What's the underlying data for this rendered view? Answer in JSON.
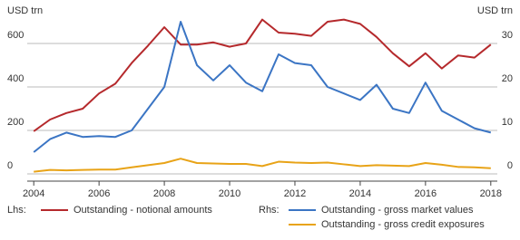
{
  "chart_data": {
    "type": "line",
    "y_label": "USD trn",
    "y2_label": "USD trn",
    "legend_groups": {
      "lhs": "Lhs:",
      "rhs": "Rhs:"
    },
    "x": [
      2004,
      2004.5,
      2005,
      2005.5,
      2006,
      2006.5,
      2007,
      2007.5,
      2008,
      2008.5,
      2009,
      2009.5,
      2010,
      2010.5,
      2011,
      2011.5,
      2012,
      2012.5,
      2013,
      2013.5,
      2014,
      2014.5,
      2015,
      2015.5,
      2016,
      2016.5,
      2017,
      2017.5,
      2018
    ],
    "xlim": [
      2003.8,
      2018.2
    ],
    "xticks": [
      2004,
      2006,
      2008,
      2010,
      2012,
      2014,
      2016,
      2018
    ],
    "ylim": [
      0,
      750
    ],
    "yticks": [
      0,
      200,
      400,
      600
    ],
    "y2lim": [
      0,
      37.5
    ],
    "y2ticks": [
      0,
      10,
      20,
      30
    ],
    "grid": true,
    "series": [
      {
        "name": "Outstanding - notional amounts",
        "color": "#b5292c",
        "group": "lhs",
        "values": [
          196,
          250,
          280,
          300,
          370,
          415,
          510,
          590,
          675,
          595,
          595,
          605,
          585,
          600,
          710,
          650,
          645,
          635,
          700,
          710,
          690,
          630,
          555,
          495,
          555,
          485,
          545,
          535,
          595
        ]
      },
      {
        "name": "Outstanding - gross market values",
        "color": "#3b75c4",
        "axis": "y2",
        "group": "rhs",
        "values": [
          5,
          8,
          9.5,
          8.5,
          8.7,
          8.5,
          10,
          15,
          20,
          35,
          25,
          21.5,
          25,
          21,
          19,
          27.5,
          25.5,
          25,
          20,
          18.5,
          17,
          20.5,
          15,
          14,
          21,
          14.5,
          12.5,
          10.5,
          9.5
        ]
      },
      {
        "name": "Outstanding - gross credit exposures",
        "color": "#e8a317",
        "axis": "y2",
        "group": "rhs",
        "values": [
          0.5,
          0.9,
          0.8,
          0.9,
          1,
          1,
          1.5,
          2,
          2.5,
          3.5,
          2.5,
          2.4,
          2.3,
          2.3,
          1.8,
          2.8,
          2.6,
          2.5,
          2.6,
          2.2,
          1.8,
          2,
          1.9,
          1.8,
          2.5,
          2.1,
          1.6,
          1.5,
          1.3
        ]
      }
    ]
  }
}
